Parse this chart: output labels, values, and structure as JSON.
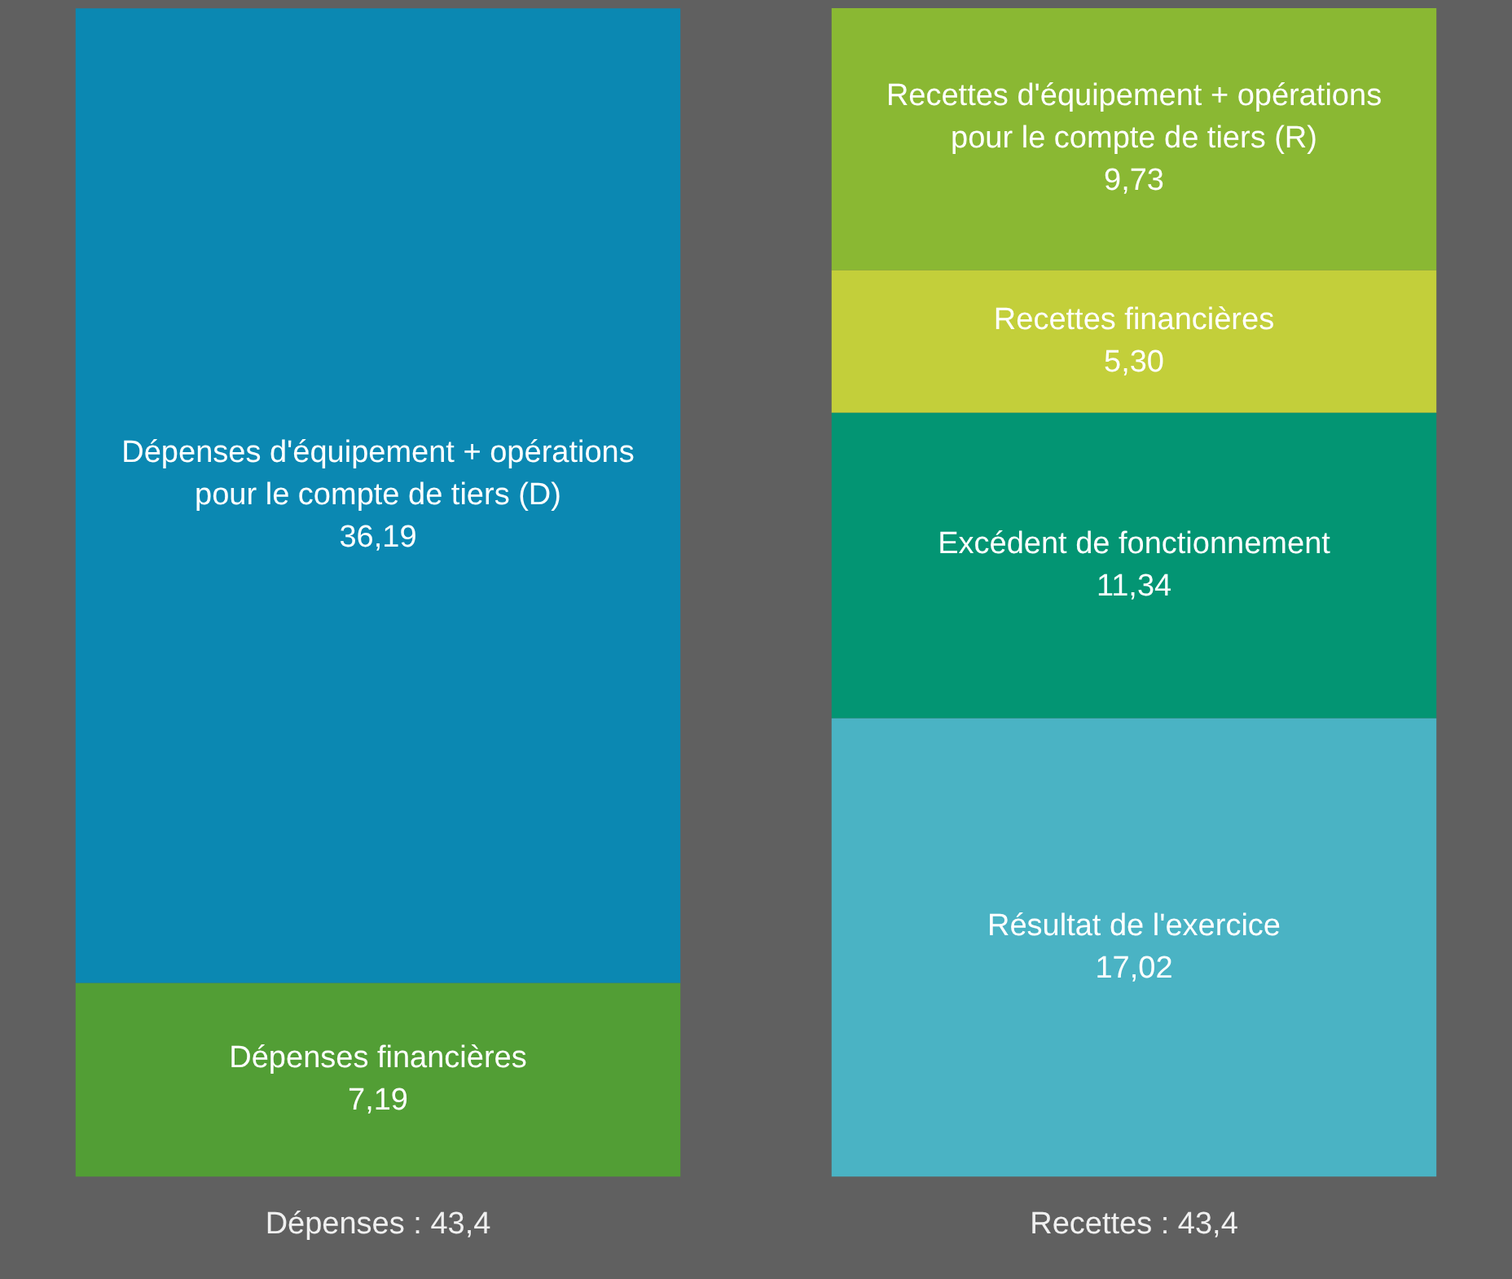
{
  "chart_data": {
    "type": "bar",
    "stacked": true,
    "legend": false,
    "grid": false,
    "tick_labels": "x",
    "categories": [
      "Dépenses : 43,4",
      "Recettes : 43,4"
    ],
    "series": [
      {
        "name": "Dépenses financières",
        "color": "#529e35",
        "values": [
          7.19,
          null
        ],
        "value_labels": [
          "7,19",
          null
        ]
      },
      {
        "name": "Dépenses d'équipement + opérations pour le compte de tiers (D)",
        "color": "#0b88b2",
        "values": [
          36.19,
          null
        ],
        "value_labels": [
          "36,19",
          null
        ]
      },
      {
        "name": "Résultat de l'exercice",
        "color": "#4ab3c4",
        "values": [
          null,
          17.02
        ],
        "value_labels": [
          null,
          "17,02"
        ]
      },
      {
        "name": "Excédent de fonctionnement",
        "color": "#039573",
        "values": [
          null,
          11.34
        ],
        "value_labels": [
          null,
          "11,34"
        ]
      },
      {
        "name": "Recettes financières",
        "color": "#c3cf3a",
        "values": [
          null,
          5.3
        ],
        "value_labels": [
          null,
          "5,30"
        ]
      },
      {
        "name": "Recettes d'équipement + opérations pour le compte de tiers (R)",
        "color": "#8ab833",
        "values": [
          null,
          9.73
        ],
        "value_labels": [
          null,
          "9,73"
        ]
      }
    ]
  }
}
